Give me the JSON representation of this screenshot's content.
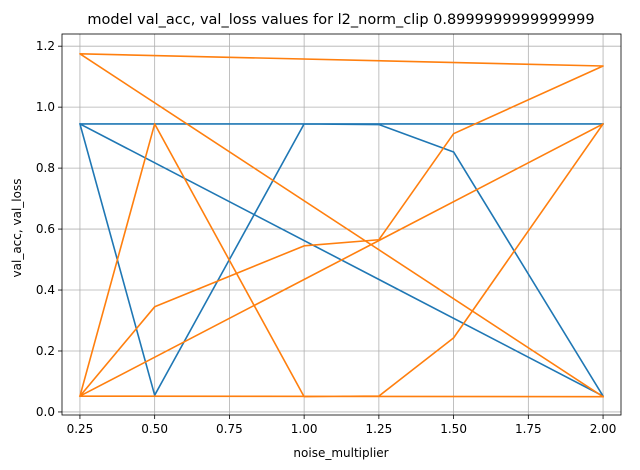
{
  "chart_data": {
    "type": "line",
    "title": "model val_acc, val_loss values for l2_norm_clip 0.8999999999999999",
    "xlabel": "noise_multiplier",
    "ylabel": "val_acc, val_loss",
    "xlim": [
      0.19,
      2.06
    ],
    "ylim": [
      -0.01,
      1.24
    ],
    "grid": true,
    "xticks": [
      0.25,
      0.5,
      0.75,
      1.0,
      1.25,
      1.5,
      1.75,
      2.0
    ],
    "xtick_labels": [
      "0.25",
      "0.50",
      "0.75",
      "1.00",
      "1.25",
      "1.50",
      "1.75",
      "2.00"
    ],
    "yticks": [
      0.0,
      0.2,
      0.4,
      0.6,
      0.8,
      1.0,
      1.2
    ],
    "ytick_labels": [
      "0.0",
      "0.2",
      "0.4",
      "0.6",
      "0.8",
      "1.0",
      "1.2"
    ],
    "series": [
      {
        "color": "#1f77b4",
        "x": [
          0.25,
          0.5,
          1.0,
          1.25,
          1.5,
          2.0,
          0.25,
          2.0
        ],
        "y": [
          0.945,
          0.055,
          0.945,
          0.943,
          0.853,
          0.052,
          0.945,
          0.945
        ]
      },
      {
        "color": "#ff7f0e",
        "x": [
          0.25,
          0.5,
          1.0,
          1.25,
          1.5,
          2.0,
          0.25,
          2.0
        ],
        "y": [
          0.052,
          0.345,
          0.545,
          0.565,
          0.913,
          1.135,
          1.175,
          0.05
        ]
      },
      {
        "color": "#ff7f0e",
        "x": [
          0.25,
          0.5,
          1.0,
          1.25,
          1.5,
          2.0,
          0.25,
          2.0
        ],
        "y": [
          0.052,
          0.945,
          0.05,
          0.052,
          0.243,
          0.945,
          0.052,
          0.05
        ]
      }
    ]
  }
}
